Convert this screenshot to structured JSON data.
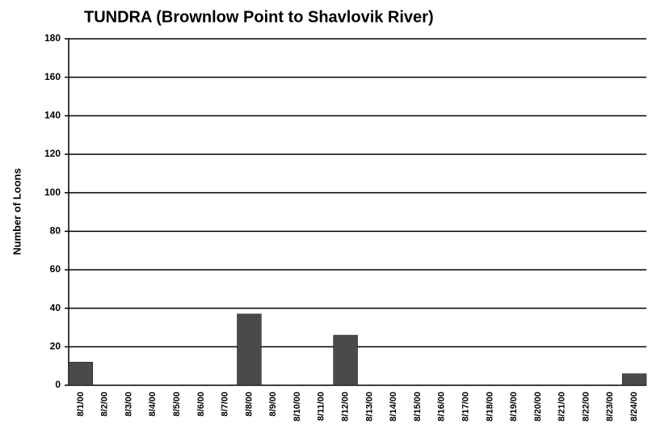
{
  "chart_data": {
    "type": "bar",
    "title": "TUNDRA (Brownlow Point to Shavlovik River)",
    "y_label": "Number of Loons",
    "categories": [
      "8/1/00",
      "8/2/00",
      "8/3/00",
      "8/4/00",
      "8/5/00",
      "8/6/00",
      "8/7/00",
      "8/8/00",
      "8/9/00",
      "8/10/00",
      "8/11/00",
      "8/12/00",
      "8/13/00",
      "8/14/00",
      "8/15/00",
      "8/16/00",
      "8/17/00",
      "8/18/00",
      "8/19/00",
      "8/20/00",
      "8/21/00",
      "8/22/00",
      "8/23/00",
      "8/24/00"
    ],
    "values": [
      12,
      0,
      0,
      0,
      0,
      0,
      0,
      37,
      0,
      0,
      0,
      26,
      0,
      0,
      0,
      0,
      0,
      0,
      0,
      0,
      0,
      0,
      0,
      6
    ],
    "color": "#4a4a4a",
    "ylim": [
      0,
      180
    ],
    "yticks": [
      0,
      20,
      40,
      60,
      80,
      100,
      120,
      140,
      160,
      180
    ],
    "grid": true
  }
}
